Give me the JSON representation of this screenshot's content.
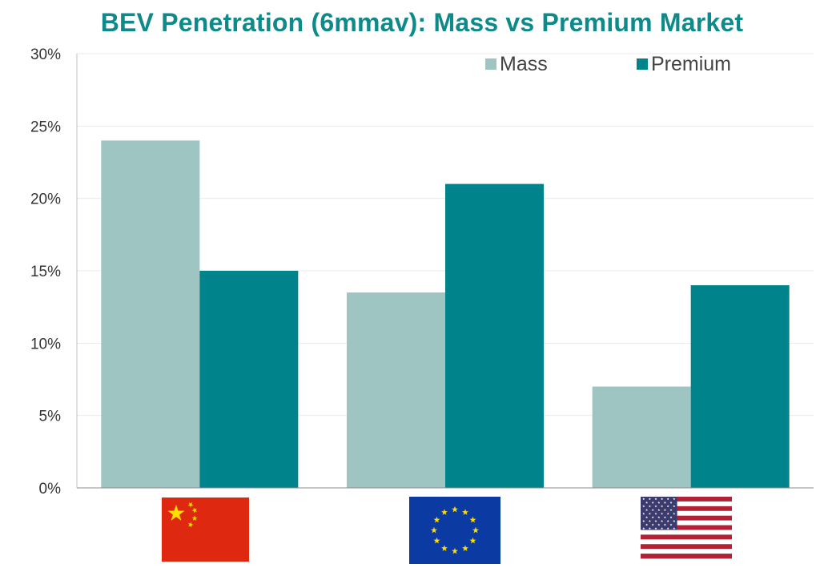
{
  "chart_data": {
    "type": "bar",
    "title": "BEV Penetration (6mmav): Mass vs Premium Market",
    "categories": [
      "china-flag",
      "eu-flag",
      "us-flag"
    ],
    "series": [
      {
        "name": "Mass",
        "values": [
          24,
          13.5,
          7
        ],
        "color": "#9ec5c2"
      },
      {
        "name": "Premium",
        "values": [
          15,
          21,
          14
        ],
        "color": "#00838a"
      }
    ],
    "ylim": [
      0,
      30
    ],
    "yticks": [
      0,
      5,
      10,
      15,
      20,
      25,
      30
    ],
    "y_tick_suffix": "%",
    "xlabel": "",
    "ylabel": "",
    "grid": true,
    "legend_placement": "top-right"
  },
  "colors": {
    "title": "#0f8a8a",
    "grid": "#e9e9e9",
    "axis": "#bfbfbf"
  }
}
